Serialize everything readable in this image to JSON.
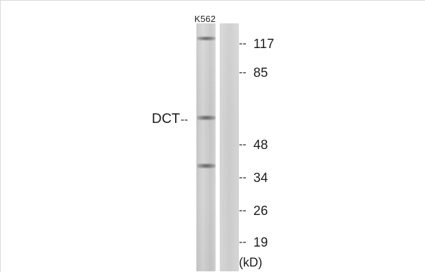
{
  "sample_label": "K562",
  "target_label": "DCT",
  "marker_dash": "--",
  "markers": [
    "117",
    "85",
    "48",
    "34",
    "26",
    "19"
  ],
  "unit_label": "(kD)",
  "colors": {
    "background": "#ffffff",
    "lane": "#d2d2d2",
    "band": "#5a5a5a",
    "text": "#1d1d1d"
  }
}
